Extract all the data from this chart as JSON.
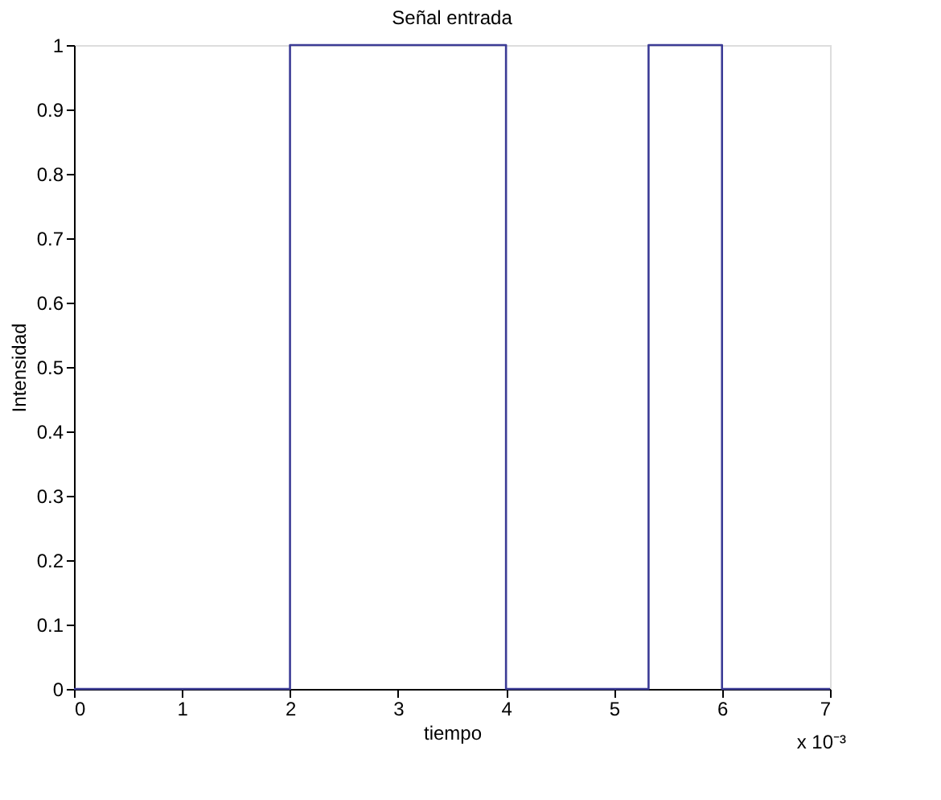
{
  "chart_data": {
    "type": "line",
    "title": "Señal entrada",
    "xlabel": "tiempo",
    "ylabel": "Intensidad",
    "x": [
      0,
      2,
      2,
      4,
      4,
      5.32,
      5.32,
      6,
      6,
      7
    ],
    "series": [
      {
        "color": "#3c3c96",
        "values": [
          0,
          0,
          1,
          1,
          0,
          0,
          1,
          1,
          0,
          0
        ]
      }
    ],
    "xlim": [
      0,
      7
    ],
    "xticks": [
      0,
      1,
      2,
      3,
      4,
      5,
      6,
      7
    ],
    "ylim": [
      0,
      1
    ],
    "yticks": [
      0,
      0.1,
      0.2,
      0.3,
      0.4,
      0.5,
      0.6,
      0.7,
      0.8,
      0.9,
      1
    ],
    "annotations": [
      "x 10⁻³"
    ],
    "grid": false,
    "marker": "none",
    "line_style": "solid"
  }
}
